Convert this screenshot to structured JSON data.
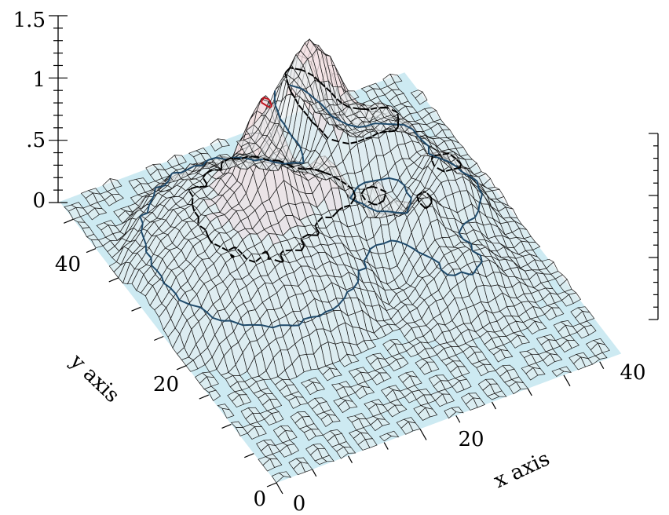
{
  "chart_data": {
    "type": "surface3d",
    "title": "",
    "xlabel": "x axis",
    "ylabel": "y axis",
    "zlabel": "",
    "x_ticks": [
      "0",
      "20",
      "40"
    ],
    "y_ticks": [
      "0",
      "20",
      "40"
    ],
    "z_ticks": [
      "0",
      ".5",
      "1",
      "1.5"
    ],
    "x_range": [
      0,
      48
    ],
    "y_range": [
      0,
      48
    ],
    "z_range": [
      0,
      1.5
    ],
    "z_minor_ticks_per_major": 5,
    "grid": false,
    "plane_color": "#cdeaf2",
    "surface_color": "#e8eef0",
    "surface_high_color": "#f3e2e4",
    "grid_line_color": "#1a1a1a",
    "contour_levels": [
      {
        "level": 0.25,
        "color": "#1f4a6b",
        "style": "solid"
      },
      {
        "level": 0.5,
        "color": "#000000",
        "style": "dashed"
      },
      {
        "level": 1.25,
        "color": "#c0141e",
        "style": "solid"
      }
    ],
    "surface_features": [
      {
        "name": "broad dome",
        "center": [
          14,
          30
        ],
        "height": 0.6
      },
      {
        "name": "sharp peak",
        "center": [
          18,
          30
        ],
        "height": 1.3
      },
      {
        "name": "ridge",
        "center": [
          32,
          36
        ],
        "height": 1.4
      },
      {
        "name": "plateau",
        "center": [
          38,
          24
        ],
        "height": 0.65
      },
      {
        "name": "knobs",
        "center": [
          30,
          24
        ],
        "height": 0.75
      }
    ]
  }
}
